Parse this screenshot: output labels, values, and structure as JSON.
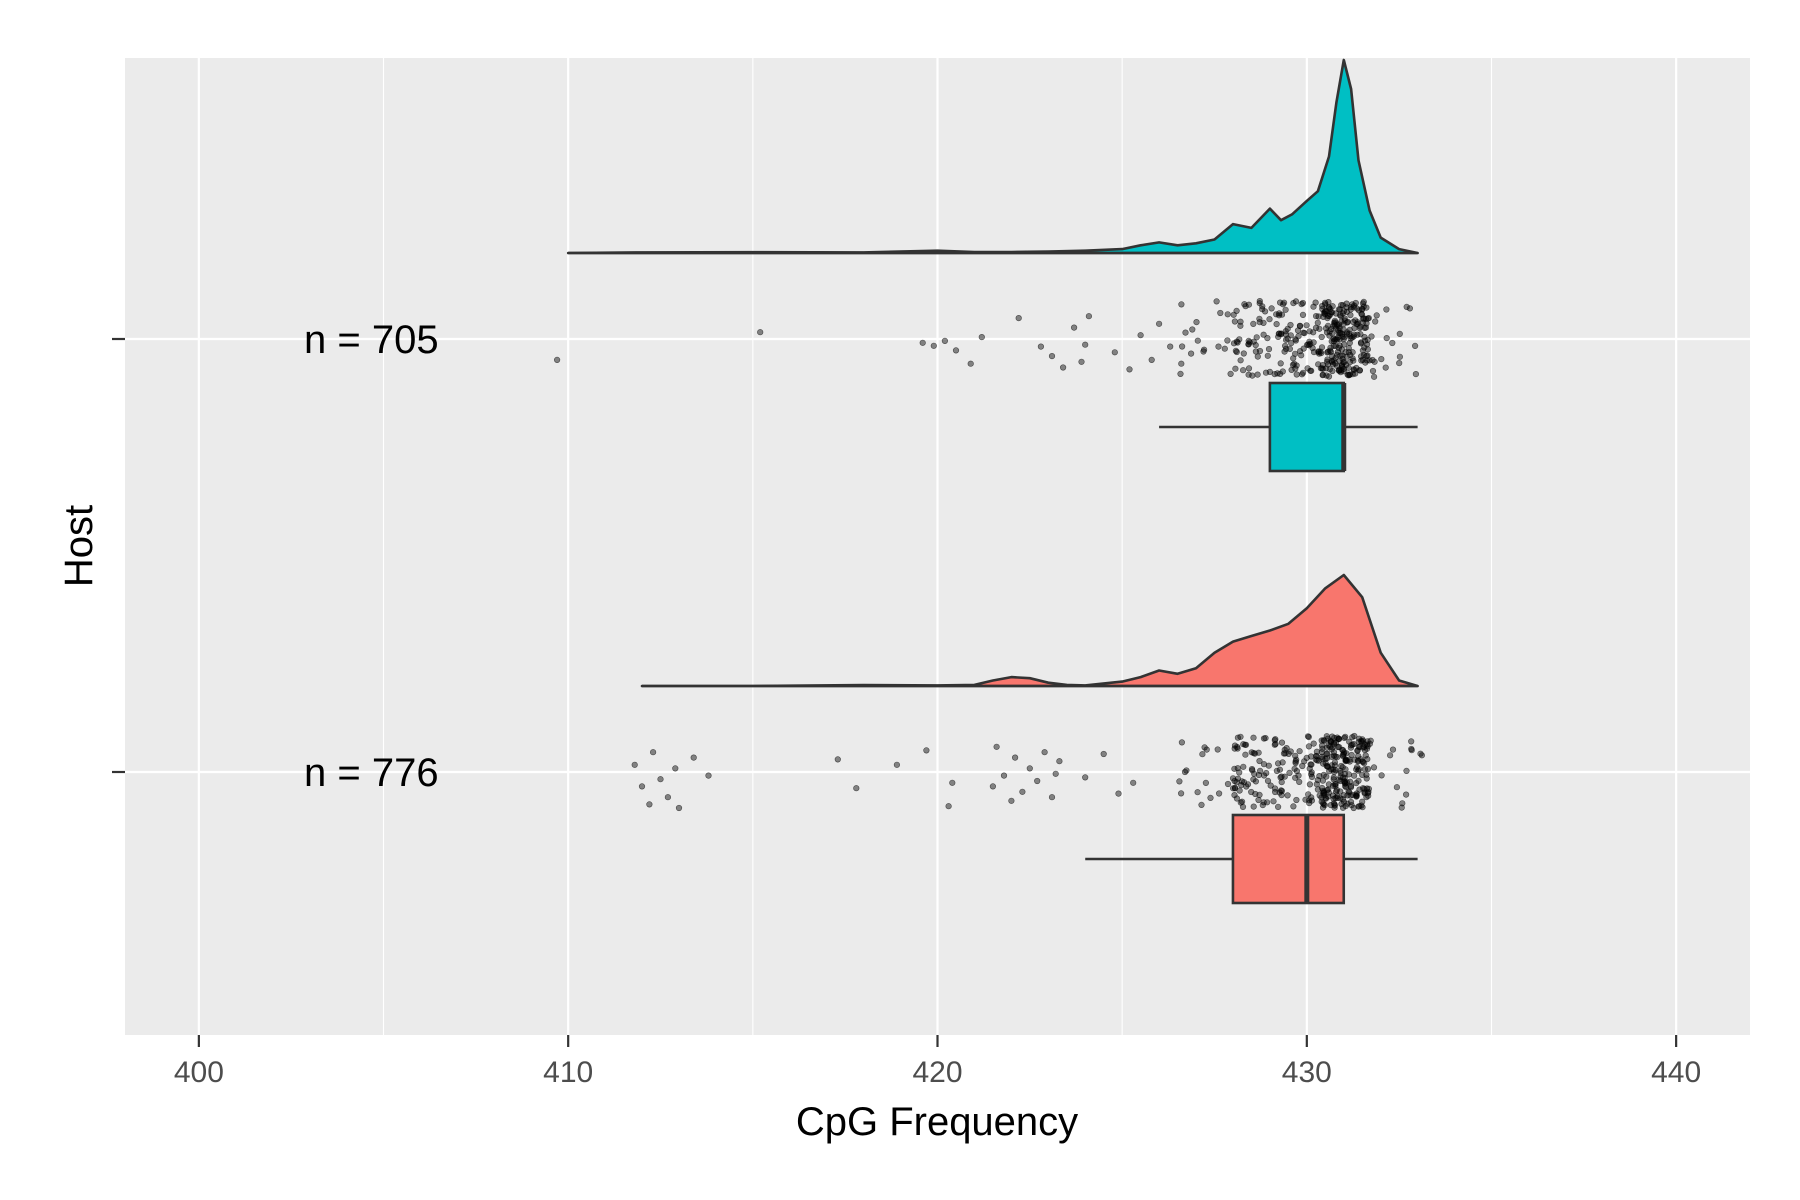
{
  "chart_data": {
    "type": "raincloud",
    "xlabel": "CpG Frequency",
    "ylabel": "Host",
    "xlim": [
      398,
      442
    ],
    "x_ticks": [
      400,
      410,
      420,
      430,
      440
    ],
    "x_tick_labels": [
      "400",
      "410",
      "420",
      "430",
      "440"
    ],
    "grid": true,
    "legend": "none",
    "series": [
      {
        "n_label": "n = 705",
        "n": 705,
        "color": "#00BFC4",
        "box": {
          "whisker_low": 426,
          "q1": 429,
          "median": 431,
          "q3": 431,
          "whisker_high": 433
        },
        "density": {
          "x": [
            410,
            412,
            415,
            418,
            420,
            421,
            422,
            423,
            424,
            425,
            425.5,
            426,
            426.5,
            427,
            427.5,
            428,
            428.5,
            429,
            429.3,
            429.6,
            430,
            430.3,
            430.6,
            430.8,
            431,
            431.2,
            431.4,
            431.7,
            432,
            432.5,
            433
          ],
          "height": [
            0.0,
            0.003,
            0.004,
            0.003,
            0.012,
            0.005,
            0.005,
            0.008,
            0.012,
            0.02,
            0.04,
            0.055,
            0.04,
            0.05,
            0.07,
            0.15,
            0.13,
            0.23,
            0.17,
            0.2,
            0.27,
            0.32,
            0.5,
            0.78,
            1.0,
            0.85,
            0.48,
            0.22,
            0.08,
            0.02,
            0.0
          ]
        },
        "outlier_points": [
          [
            409.7,
            0.55
          ],
          [
            415.2,
            -0.18
          ],
          [
            419.6,
            0.1
          ],
          [
            419.9,
            0.18
          ],
          [
            420.2,
            0.05
          ],
          [
            420.5,
            0.3
          ],
          [
            420.9,
            0.65
          ],
          [
            421.2,
            -0.05
          ],
          [
            422.2,
            -0.55
          ],
          [
            422.8,
            0.2
          ],
          [
            423.1,
            0.45
          ],
          [
            423.4,
            0.75
          ],
          [
            423.7,
            -0.3
          ],
          [
            423.9,
            0.6
          ],
          [
            424.0,
            0.15
          ],
          [
            424.1,
            -0.6
          ],
          [
            424.8,
            0.35
          ],
          [
            425.2,
            0.8
          ],
          [
            425.5,
            -0.1
          ],
          [
            425.8,
            0.55
          ],
          [
            426.0,
            -0.4
          ],
          [
            426.3,
            0.2
          ],
          [
            426.6,
            0.65
          ],
          [
            426.9,
            -0.25
          ]
        ]
      },
      {
        "n_label": "n = 776",
        "n": 776,
        "color": "#F8766D",
        "box": {
          "whisker_low": 424,
          "q1": 428,
          "median": 430,
          "q3": 431,
          "whisker_high": 433
        },
        "density": {
          "x": [
            412,
            415,
            418,
            420,
            421,
            421.5,
            422,
            422.5,
            423,
            423.5,
            424,
            425,
            425.5,
            426,
            426.5,
            427,
            427.5,
            428,
            428.5,
            429,
            429.5,
            430,
            430.5,
            431,
            431.5,
            432,
            432.5,
            433
          ],
          "height": [
            0.0,
            0.0,
            0.008,
            0.005,
            0.01,
            0.05,
            0.08,
            0.07,
            0.03,
            0.01,
            0.005,
            0.04,
            0.08,
            0.14,
            0.11,
            0.16,
            0.3,
            0.4,
            0.45,
            0.5,
            0.56,
            0.7,
            0.88,
            1.0,
            0.8,
            0.3,
            0.05,
            0.0
          ]
        },
        "outlier_points": [
          [
            411.8,
            -0.2
          ],
          [
            412.0,
            0.4
          ],
          [
            412.2,
            0.9
          ],
          [
            412.3,
            -0.55
          ],
          [
            412.5,
            0.2
          ],
          [
            412.7,
            0.7
          ],
          [
            412.9,
            -0.1
          ],
          [
            413.0,
            1.0
          ],
          [
            413.4,
            -0.4
          ],
          [
            413.8,
            0.1
          ],
          [
            417.3,
            -0.35
          ],
          [
            417.8,
            0.45
          ],
          [
            418.9,
            -0.2
          ],
          [
            419.7,
            -0.6
          ],
          [
            420.3,
            0.95
          ],
          [
            420.4,
            0.3
          ],
          [
            421.5,
            0.4
          ],
          [
            421.6,
            -0.7
          ],
          [
            421.8,
            0.1
          ],
          [
            422.0,
            0.8
          ],
          [
            422.1,
            -0.4
          ],
          [
            422.3,
            0.55
          ],
          [
            422.5,
            -0.1
          ],
          [
            422.7,
            0.25
          ],
          [
            422.9,
            -0.55
          ],
          [
            423.1,
            0.7
          ],
          [
            423.2,
            0.05
          ],
          [
            423.3,
            -0.3
          ],
          [
            424.0,
            0.15
          ],
          [
            424.5,
            -0.5
          ],
          [
            424.9,
            0.6
          ],
          [
            425.3,
            0.3
          ]
        ]
      }
    ],
    "dense_range": [
      426.5,
      433.2
    ],
    "dense_points_per_series": 380
  }
}
